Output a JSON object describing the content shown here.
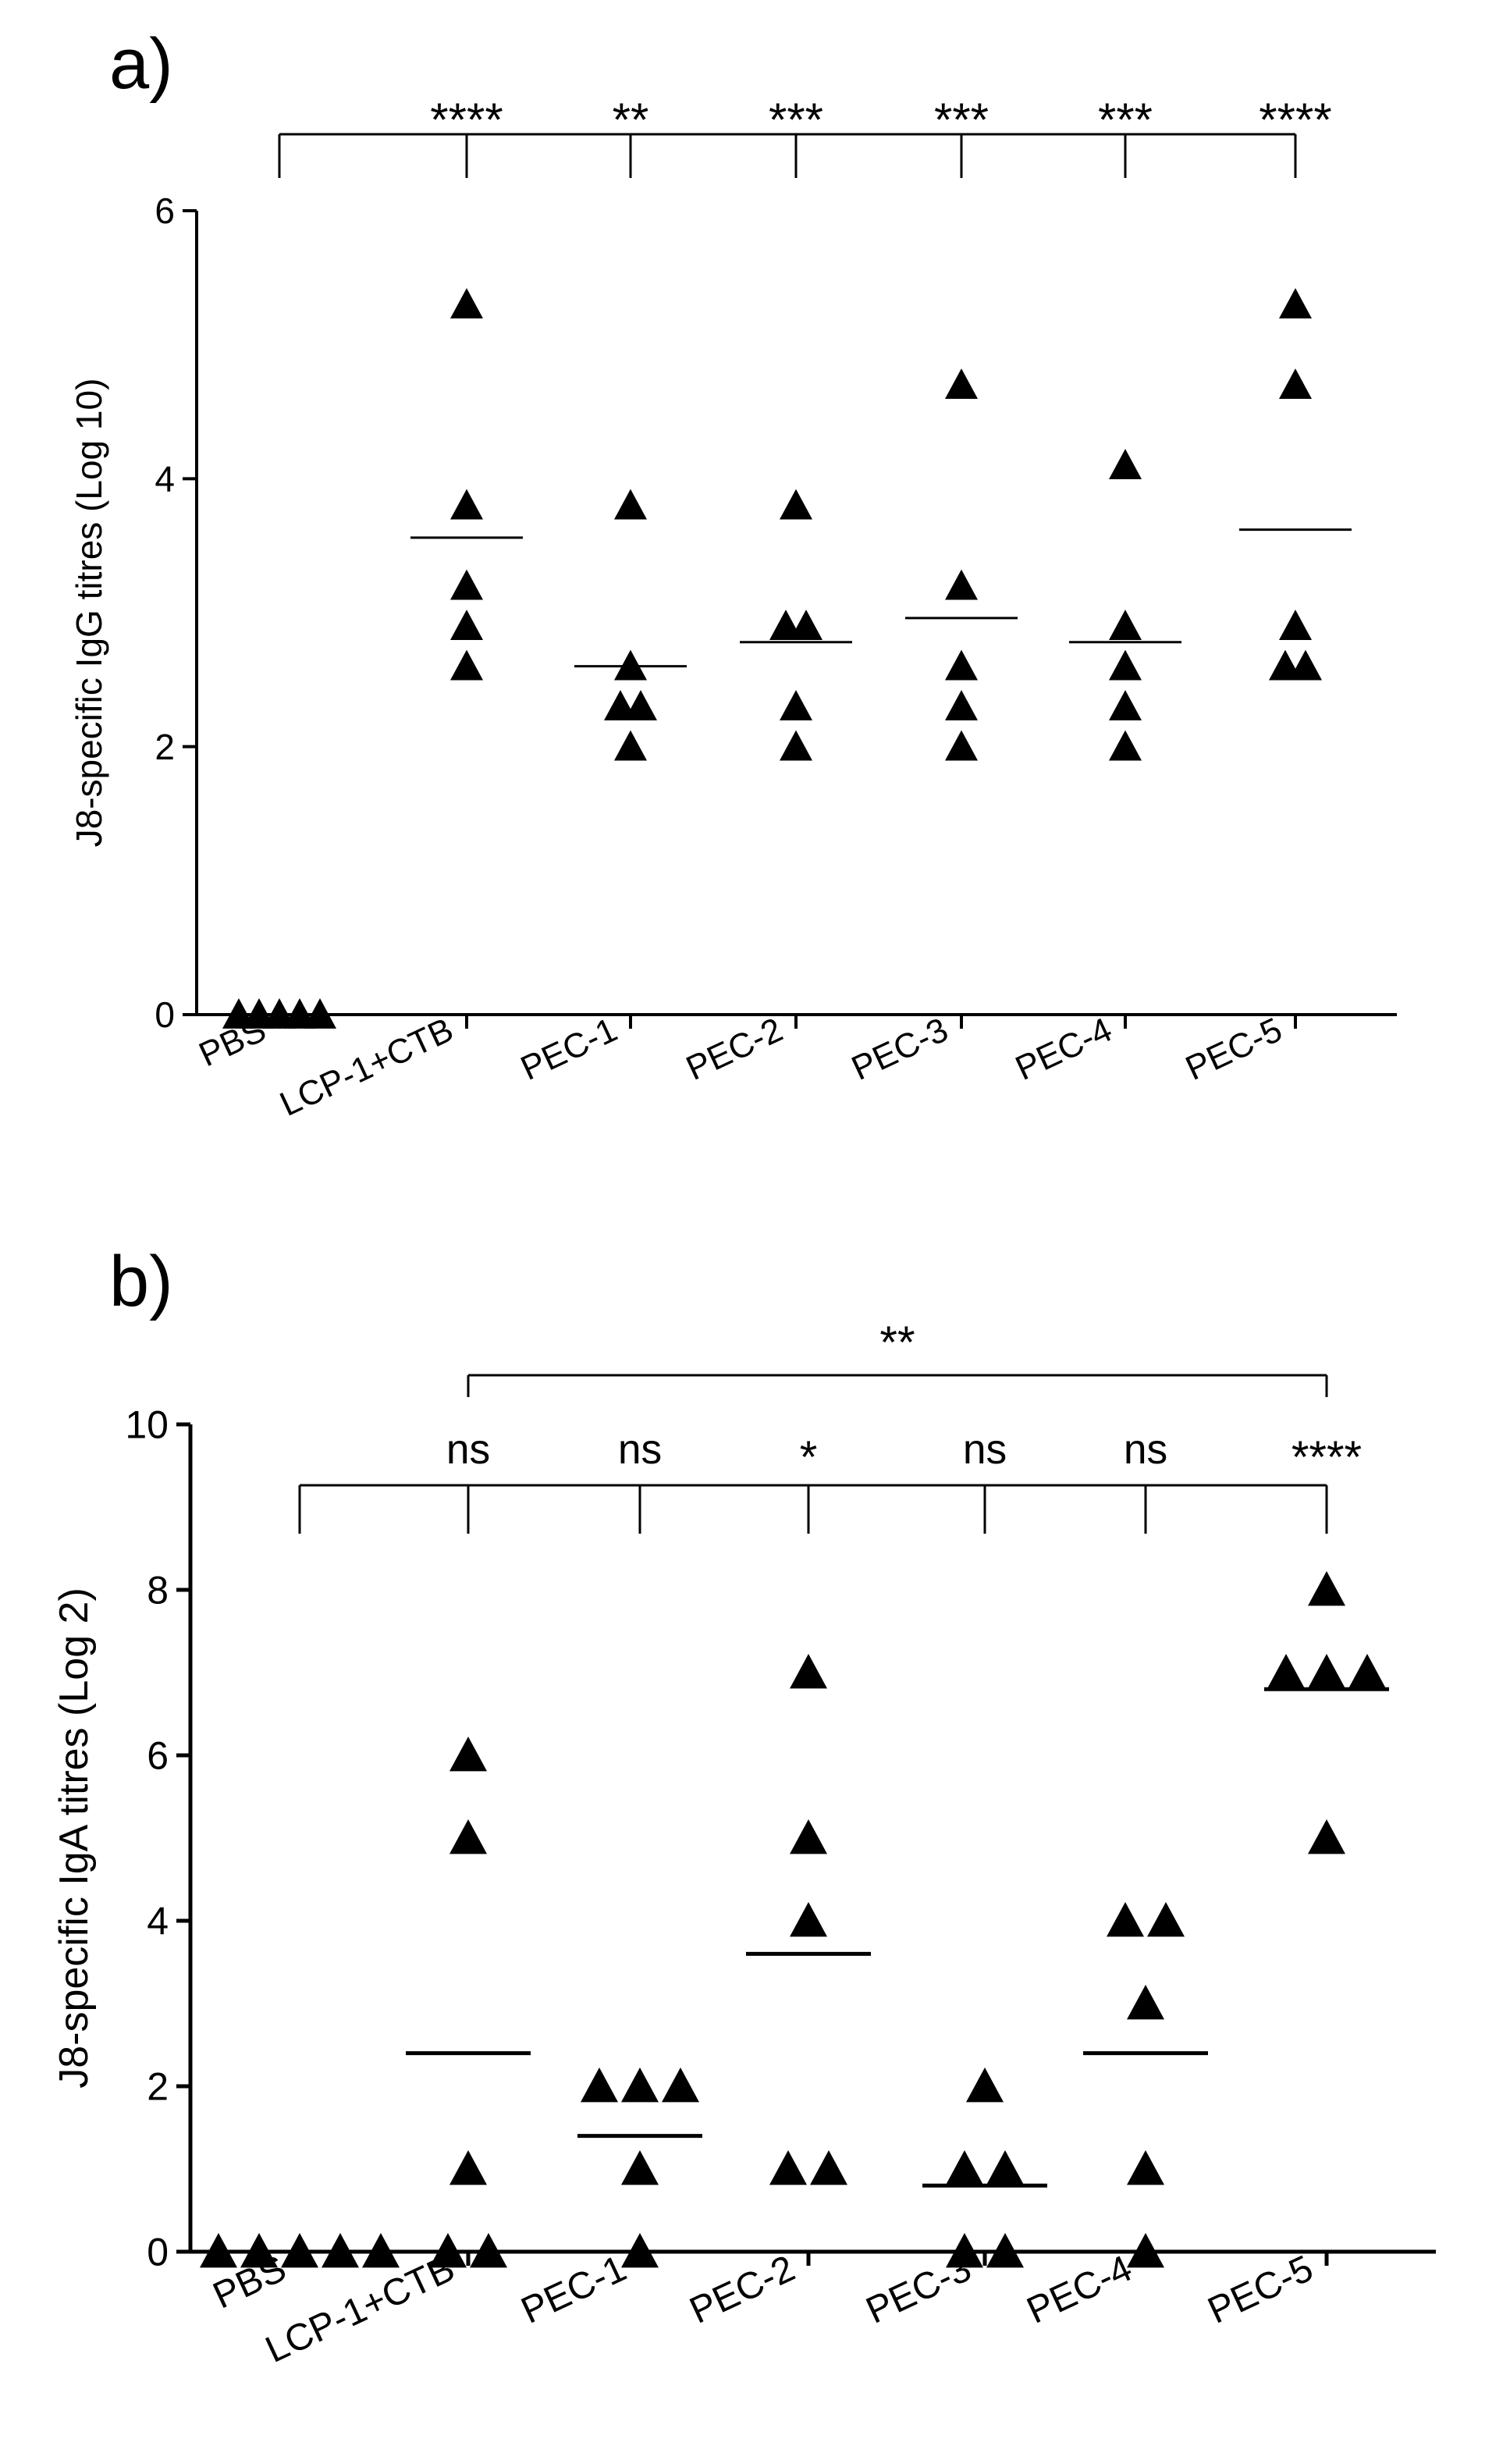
{
  "panels": {
    "a": {
      "label": "a)"
    },
    "b": {
      "label": "b)"
    }
  },
  "chart_data": [
    {
      "type": "scatter",
      "id": "a",
      "title": "",
      "xlabel": "",
      "ylabel": "J8-specific IgG titres (Log 10)",
      "ylim": [
        0,
        6
      ],
      "yticks": [
        0,
        2,
        4,
        6
      ],
      "categories": [
        "PBS",
        "LCP-1+CTB",
        "PEC-1",
        "PEC-2",
        "PEC-3",
        "PEC-4",
        "PEC-5"
      ],
      "points": [
        [
          0,
          0,
          0,
          0,
          0
        ],
        [
          5.3,
          3.8,
          3.2,
          2.9,
          2.6
        ],
        [
          3.8,
          2.6,
          2.3,
          2.3,
          2.0
        ],
        [
          3.8,
          2.9,
          2.9,
          2.3,
          2.0
        ],
        [
          4.7,
          3.2,
          2.6,
          2.3,
          2.0
        ],
        [
          4.1,
          2.9,
          2.6,
          2.3,
          2.0
        ],
        [
          5.3,
          4.7,
          2.9,
          2.6,
          2.6
        ]
      ],
      "means": [
        null,
        3.56,
        2.6,
        2.78,
        2.96,
        2.78,
        3.62
      ],
      "marker_color": "#000000",
      "significance": {
        "reference": "PBS",
        "labels": [
          "****",
          "**",
          "***",
          "***",
          "***",
          "****"
        ]
      }
    },
    {
      "type": "scatter",
      "id": "b",
      "title": "",
      "xlabel": "",
      "ylabel": "J8-specific IgA titres (Log 2)",
      "ylim": [
        0,
        10
      ],
      "yticks": [
        0,
        2,
        4,
        6,
        8,
        10
      ],
      "categories": [
        "PBS",
        "LCP-1+CTB",
        "PEC-1",
        "PEC-2",
        "PEC-3",
        "PEC-4",
        "PEC-5"
      ],
      "points": [
        [
          0,
          0,
          0,
          0,
          0
        ],
        [
          6,
          5,
          1,
          0,
          0
        ],
        [
          2,
          2,
          2,
          1,
          0
        ],
        [
          7,
          5,
          4,
          1,
          1
        ],
        [
          2,
          1,
          1,
          0,
          0
        ],
        [
          4,
          4,
          3,
          1,
          0
        ],
        [
          8,
          7,
          7,
          7,
          5
        ]
      ],
      "means": [
        null,
        2.4,
        1.4,
        3.6,
        0.8,
        2.4,
        6.8
      ],
      "marker_color": "#000000",
      "significance": {
        "reference": "PBS",
        "labels": [
          "ns",
          "ns",
          "*",
          "ns",
          "ns",
          "****"
        ],
        "top_bracket": {
          "from": "LCP-1+CTB",
          "to": "PEC-5",
          "label": "**"
        }
      }
    }
  ]
}
